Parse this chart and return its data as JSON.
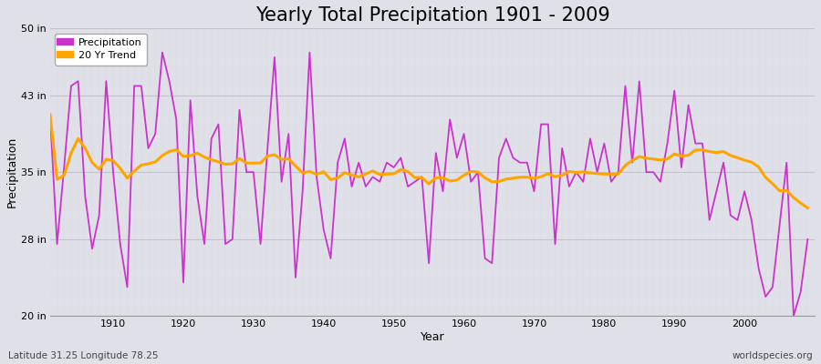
{
  "title": "Yearly Total Precipitation 1901 - 2009",
  "xlabel": "Year",
  "ylabel": "Precipitation",
  "subtitle_left": "Latitude 31.25 Longitude 78.25",
  "subtitle_right": "worldspecies.org",
  "years": [
    1901,
    1902,
    1903,
    1904,
    1905,
    1906,
    1907,
    1908,
    1909,
    1910,
    1911,
    1912,
    1913,
    1914,
    1915,
    1916,
    1917,
    1918,
    1919,
    1920,
    1921,
    1922,
    1923,
    1924,
    1925,
    1926,
    1927,
    1928,
    1929,
    1930,
    1931,
    1932,
    1933,
    1934,
    1935,
    1936,
    1937,
    1938,
    1939,
    1940,
    1941,
    1942,
    1943,
    1944,
    1945,
    1946,
    1947,
    1948,
    1949,
    1950,
    1951,
    1952,
    1953,
    1954,
    1955,
    1956,
    1957,
    1958,
    1959,
    1960,
    1961,
    1962,
    1963,
    1964,
    1965,
    1966,
    1967,
    1968,
    1969,
    1970,
    1971,
    1972,
    1973,
    1974,
    1975,
    1976,
    1977,
    1978,
    1979,
    1980,
    1981,
    1982,
    1983,
    1984,
    1985,
    1986,
    1987,
    1988,
    1989,
    1990,
    1991,
    1992,
    1993,
    1994,
    1995,
    1996,
    1997,
    1998,
    1999,
    2000,
    2001,
    2002,
    2003,
    2004,
    2005,
    2006,
    2007,
    2008,
    2009
  ],
  "precipitation": [
    41.0,
    27.5,
    35.5,
    44.0,
    44.5,
    32.5,
    27.0,
    30.5,
    44.5,
    35.0,
    27.5,
    23.0,
    44.0,
    44.0,
    37.5,
    39.0,
    47.5,
    44.5,
    40.5,
    23.5,
    42.5,
    32.5,
    27.5,
    38.5,
    40.0,
    27.5,
    28.0,
    41.5,
    35.0,
    35.0,
    27.5,
    37.5,
    47.0,
    34.0,
    39.0,
    24.0,
    33.0,
    47.5,
    34.5,
    29.0,
    26.0,
    36.0,
    38.5,
    33.5,
    36.0,
    33.5,
    34.5,
    34.0,
    36.0,
    35.5,
    36.5,
    33.5,
    34.0,
    34.5,
    25.5,
    37.0,
    33.0,
    40.5,
    36.5,
    39.0,
    34.0,
    35.0,
    26.0,
    25.5,
    36.5,
    38.5,
    36.5,
    36.0,
    36.0,
    33.0,
    40.0,
    40.0,
    27.5,
    37.5,
    33.5,
    35.0,
    34.0,
    38.5,
    35.0,
    38.0,
    34.0,
    35.0,
    44.0,
    36.0,
    44.5,
    35.0,
    35.0,
    34.0,
    38.0,
    43.5,
    35.5,
    42.0,
    38.0,
    38.0,
    30.0,
    33.0,
    36.0,
    30.5,
    30.0,
    33.0,
    30.0,
    25.0,
    22.0,
    23.0,
    29.5,
    36.0,
    20.0,
    22.5,
    28.0
  ],
  "precip_color": "#cc33cc",
  "trend_color": "#ffa500",
  "bg_color": "#e0e0e8",
  "plot_bg_color": "#e0e0e8",
  "grid_major_color": "#c8c8d8",
  "grid_minor_color": "#d4d4e0",
  "ylim": [
    20,
    50
  ],
  "yticks": [
    20,
    28,
    35,
    43,
    50
  ],
  "ytick_labels": [
    "20 in",
    "28 in",
    "35 in",
    "43 in",
    "50 in"
  ],
  "xticks": [
    1910,
    1920,
    1930,
    1940,
    1950,
    1960,
    1970,
    1980,
    1990,
    2000
  ],
  "xlim": [
    1901,
    2010
  ],
  "title_fontsize": 15,
  "axis_label_fontsize": 9,
  "tick_fontsize": 8,
  "legend_fontsize": 8,
  "line_width": 1.3,
  "trend_window": 20
}
